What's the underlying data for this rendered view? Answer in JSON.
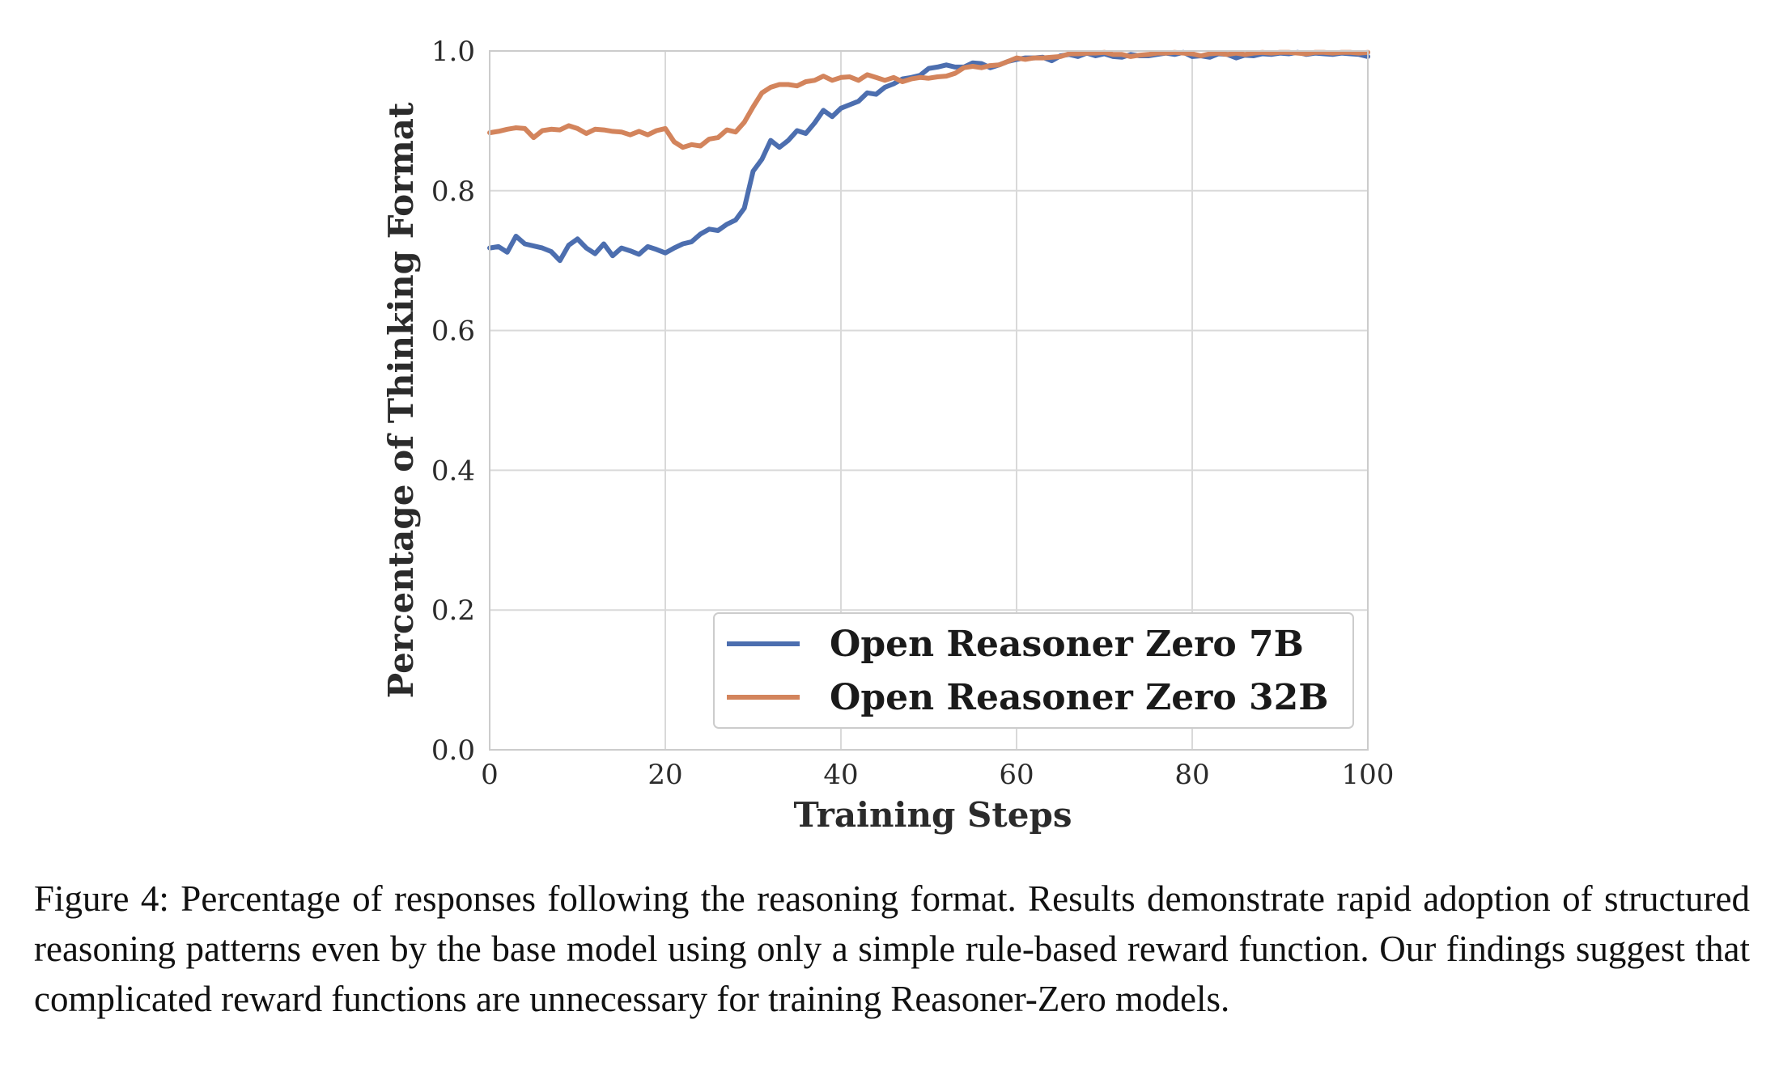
{
  "chart_data": {
    "type": "line",
    "title": "",
    "xlabel": "Training Steps",
    "ylabel": "Percentage of Thinking Format",
    "xlim": [
      0,
      100
    ],
    "ylim": [
      0.0,
      1.0
    ],
    "x_ticks": [
      "0",
      "20",
      "40",
      "60",
      "80",
      "100"
    ],
    "y_ticks": [
      "0.0",
      "0.2",
      "0.4",
      "0.6",
      "0.8",
      "1.0"
    ],
    "grid": true,
    "legend_position": "lower-right",
    "x": [
      0,
      1,
      2,
      3,
      4,
      5,
      6,
      7,
      8,
      9,
      10,
      11,
      12,
      13,
      14,
      15,
      16,
      17,
      18,
      19,
      20,
      21,
      22,
      23,
      24,
      25,
      26,
      27,
      28,
      29,
      30,
      31,
      32,
      33,
      34,
      35,
      36,
      37,
      38,
      39,
      40,
      41,
      42,
      43,
      44,
      45,
      46,
      47,
      48,
      49,
      50,
      51,
      52,
      53,
      54,
      55,
      56,
      57,
      58,
      59,
      60,
      61,
      62,
      63,
      64,
      65,
      66,
      67,
      68,
      69,
      70,
      71,
      72,
      73,
      74,
      75,
      76,
      77,
      78,
      79,
      80,
      81,
      82,
      83,
      84,
      85,
      86,
      87,
      88,
      89,
      90,
      91,
      92,
      93,
      94,
      95,
      96,
      97,
      98,
      99,
      100
    ],
    "series": [
      {
        "name": "Open Reasoner Zero 7B",
        "color": "#4c6eaf",
        "values": [
          0.718,
          0.72,
          0.712,
          0.735,
          0.724,
          0.721,
          0.718,
          0.713,
          0.7,
          0.722,
          0.731,
          0.718,
          0.71,
          0.724,
          0.707,
          0.718,
          0.714,
          0.709,
          0.72,
          0.716,
          0.711,
          0.718,
          0.724,
          0.727,
          0.738,
          0.745,
          0.743,
          0.752,
          0.758,
          0.775,
          0.828,
          0.845,
          0.872,
          0.862,
          0.872,
          0.886,
          0.882,
          0.897,
          0.915,
          0.906,
          0.918,
          0.923,
          0.928,
          0.94,
          0.938,
          0.948,
          0.953,
          0.96,
          0.962,
          0.965,
          0.975,
          0.977,
          0.98,
          0.977,
          0.977,
          0.983,
          0.982,
          0.976,
          0.98,
          0.985,
          0.988,
          0.99,
          0.99,
          0.991,
          0.986,
          0.993,
          0.995,
          0.992,
          0.997,
          0.993,
          0.996,
          0.992,
          0.991,
          0.995,
          0.993,
          0.993,
          0.995,
          0.997,
          0.995,
          0.998,
          0.992,
          0.993,
          0.991,
          0.996,
          0.995,
          0.99,
          0.994,
          0.993,
          0.996,
          0.995,
          0.997,
          0.996,
          0.998,
          0.995,
          0.997,
          0.996,
          0.995,
          0.997,
          0.996,
          0.995,
          0.992
        ]
      },
      {
        "name": "Open Reasoner Zero 32B",
        "color": "#d3845c",
        "values": [
          0.883,
          0.885,
          0.888,
          0.89,
          0.889,
          0.876,
          0.886,
          0.888,
          0.887,
          0.893,
          0.889,
          0.882,
          0.888,
          0.887,
          0.885,
          0.884,
          0.88,
          0.885,
          0.88,
          0.886,
          0.889,
          0.87,
          0.862,
          0.866,
          0.864,
          0.874,
          0.876,
          0.887,
          0.884,
          0.898,
          0.92,
          0.94,
          0.948,
          0.952,
          0.952,
          0.95,
          0.956,
          0.958,
          0.964,
          0.958,
          0.962,
          0.963,
          0.958,
          0.966,
          0.962,
          0.958,
          0.962,
          0.956,
          0.96,
          0.962,
          0.961,
          0.963,
          0.964,
          0.968,
          0.976,
          0.978,
          0.976,
          0.979,
          0.98,
          0.985,
          0.99,
          0.988,
          0.99,
          0.99,
          0.991,
          0.992,
          0.996,
          0.996,
          0.997,
          0.997,
          0.998,
          0.995,
          0.995,
          0.992,
          0.994,
          0.995,
          0.997,
          0.997,
          0.998,
          0.997,
          0.996,
          0.993,
          0.996,
          0.997,
          0.995,
          0.997,
          0.995,
          0.997,
          0.998,
          0.997,
          0.998,
          0.998,
          0.997,
          0.996,
          0.998,
          0.998,
          0.997,
          0.998,
          0.998,
          0.997,
          0.998
        ]
      }
    ]
  },
  "caption": "Figure 4: Percentage of responses following the reasoning format. Results demonstrate rapid adoption of structured reasoning patterns even by the base model using only a simple rule-based reward function. Our findings suggest that complicated reward functions are unnecessary for training Reasoner-Zero models."
}
